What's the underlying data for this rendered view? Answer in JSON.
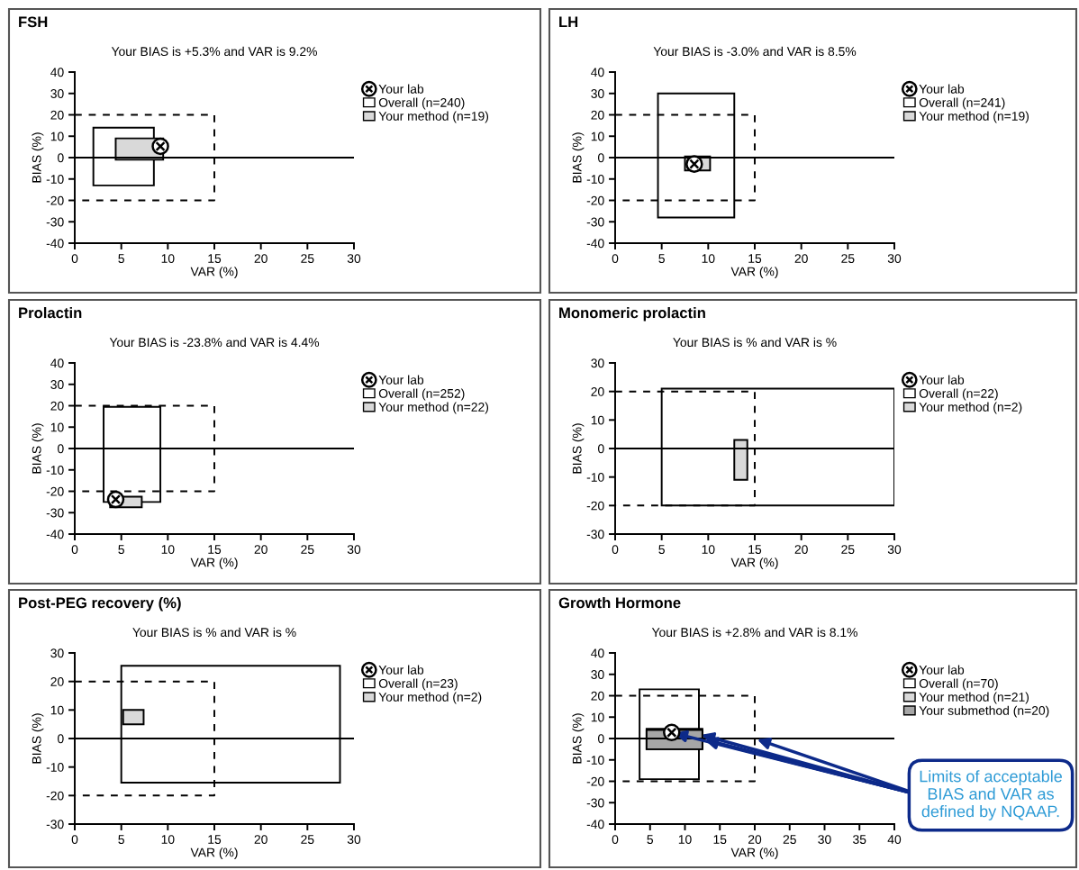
{
  "chart_data": [
    {
      "type": "scatter",
      "title": "FSH",
      "subtitle": "Your BIAS is +5.3% and VAR is 9.2%",
      "xlabel": "VAR (%)",
      "ylabel": "BIAS (%)",
      "xlim": [
        0,
        30
      ],
      "ylim": [
        -40,
        40
      ],
      "xticks": [
        0,
        5,
        10,
        15,
        20,
        25,
        30
      ],
      "yticks": [
        -40,
        -30,
        -20,
        -10,
        0,
        10,
        20,
        30,
        40
      ],
      "legend": "right",
      "ref_lines": [
        {
          "axis": "y",
          "value": 0,
          "color": "#000000"
        }
      ],
      "series": [
        {
          "type": "line",
          "line_style": "dashed",
          "color": "#000000",
          "x": [
            0,
            15,
            15,
            0
          ],
          "values": [
            20,
            20,
            -20,
            -20
          ]
        },
        {
          "name": "Overall (n=240)",
          "type": "area",
          "color": "#ffffff",
          "x": [
            2,
            8.5,
            8.5,
            2,
            2
          ],
          "values": [
            -13,
            -13,
            14,
            14,
            -13
          ]
        },
        {
          "name": "Your method (n=19)",
          "type": "area",
          "color": "#d9d9d9",
          "x": [
            4.4,
            9.5,
            9.5,
            4.4,
            4.4
          ],
          "values": [
            -1,
            -1,
            9,
            9,
            -1
          ]
        },
        {
          "name": "Your lab",
          "type": "scatter",
          "marker": "circle",
          "color": "#000000",
          "x": [
            9.2
          ],
          "values": [
            5.3
          ]
        }
      ]
    },
    {
      "type": "scatter",
      "title": "LH",
      "subtitle": "Your BIAS is -3.0% and VAR is 8.5%",
      "xlabel": "VAR (%)",
      "ylabel": "BIAS (%)",
      "xlim": [
        0,
        30
      ],
      "ylim": [
        -40,
        40
      ],
      "xticks": [
        0,
        5,
        10,
        15,
        20,
        25,
        30
      ],
      "yticks": [
        -40,
        -30,
        -20,
        -10,
        0,
        10,
        20,
        30,
        40
      ],
      "legend": "right",
      "ref_lines": [
        {
          "axis": "y",
          "value": 0,
          "color": "#000000"
        }
      ],
      "series": [
        {
          "type": "line",
          "line_style": "dashed",
          "color": "#000000",
          "x": [
            0,
            15,
            15,
            0
          ],
          "values": [
            20,
            20,
            -20,
            -20
          ]
        },
        {
          "name": "Overall (n=241)",
          "type": "area",
          "color": "#ffffff",
          "x": [
            4.6,
            12.8,
            12.8,
            4.6,
            4.6
          ],
          "values": [
            -28,
            -28,
            30,
            30,
            -28
          ]
        },
        {
          "name": "Your method (n=19)",
          "type": "area",
          "color": "#d9d9d9",
          "x": [
            7.5,
            10.2,
            10.2,
            7.5,
            7.5
          ],
          "values": [
            -6,
            -6,
            0.5,
            0.5,
            -6
          ]
        },
        {
          "name": "Your lab",
          "type": "scatter",
          "marker": "circle",
          "color": "#000000",
          "x": [
            8.5
          ],
          "values": [
            -3.0
          ]
        }
      ]
    },
    {
      "type": "scatter",
      "title": "Prolactin",
      "subtitle": "Your BIAS is -23.8% and VAR is 4.4%",
      "xlabel": "VAR (%)",
      "ylabel": "BIAS (%)",
      "xlim": [
        0,
        30
      ],
      "ylim": [
        -40,
        40
      ],
      "xticks": [
        0,
        5,
        10,
        15,
        20,
        25,
        30
      ],
      "yticks": [
        -40,
        -30,
        -20,
        -10,
        0,
        10,
        20,
        30,
        40
      ],
      "legend": "right",
      "ref_lines": [
        {
          "axis": "y",
          "value": 0,
          "color": "#000000"
        }
      ],
      "series": [
        {
          "type": "line",
          "line_style": "dashed",
          "color": "#000000",
          "x": [
            0,
            15,
            15,
            0
          ],
          "values": [
            20,
            20,
            -20,
            -20
          ]
        },
        {
          "name": "Overall (n=252)",
          "type": "area",
          "color": "#ffffff",
          "x": [
            3.1,
            9.2,
            9.2,
            3.1,
            3.1
          ],
          "values": [
            -25,
            -25,
            19.5,
            19.5,
            -25
          ]
        },
        {
          "name": "Your method (n=22)",
          "type": "area",
          "color": "#d9d9d9",
          "x": [
            3.8,
            7.2,
            7.2,
            3.8,
            3.8
          ],
          "values": [
            -27.5,
            -27.5,
            -22.5,
            -22.5,
            -27.5
          ]
        },
        {
          "name": "Your lab",
          "type": "scatter",
          "marker": "circle",
          "color": "#000000",
          "x": [
            4.4
          ],
          "values": [
            -23.8
          ]
        }
      ]
    },
    {
      "type": "scatter",
      "title": "Monomeric prolactin",
      "subtitle": "Your BIAS is % and VAR is %",
      "xlabel": "VAR (%)",
      "ylabel": "BIAS (%)",
      "xlim": [
        0,
        30
      ],
      "ylim": [
        -30,
        30
      ],
      "xticks": [
        0,
        5,
        10,
        15,
        20,
        25,
        30
      ],
      "yticks": [
        -30,
        -20,
        -10,
        0,
        10,
        20,
        30
      ],
      "legend": "right",
      "ref_lines": [
        {
          "axis": "y",
          "value": 0,
          "color": "#000000"
        }
      ],
      "series": [
        {
          "type": "line",
          "line_style": "dashed",
          "color": "#000000",
          "x": [
            0,
            15,
            15,
            0
          ],
          "values": [
            20,
            20,
            -20,
            -20
          ]
        },
        {
          "name": "Overall (n=22)",
          "type": "area",
          "color": "#ffffff",
          "x": [
            5,
            30,
            30,
            5,
            5
          ],
          "values": [
            -20,
            -20,
            21,
            21,
            -20
          ]
        },
        {
          "name": "Your method (n=2)",
          "type": "area",
          "color": "#d9d9d9",
          "x": [
            12.8,
            14.2,
            14.2,
            12.8,
            12.8
          ],
          "values": [
            -11,
            -11,
            3,
            3,
            -11
          ]
        },
        {
          "name": "Your lab",
          "type": "scatter",
          "marker": "circle",
          "color": "#000000"
        }
      ]
    },
    {
      "type": "scatter",
      "title": "Post-PEG recovery (%)",
      "subtitle": "Your BIAS is % and VAR is %",
      "xlabel": "VAR (%)",
      "ylabel": "BIAS (%)",
      "xlim": [
        0,
        30
      ],
      "ylim": [
        -30,
        30
      ],
      "xticks": [
        0,
        5,
        10,
        15,
        20,
        25,
        30
      ],
      "yticks": [
        -30,
        -20,
        -10,
        0,
        10,
        20,
        30
      ],
      "legend": "right",
      "ref_lines": [
        {
          "axis": "y",
          "value": 0,
          "color": "#000000"
        }
      ],
      "series": [
        {
          "type": "line",
          "line_style": "dashed",
          "color": "#000000",
          "x": [
            0,
            15,
            15,
            0
          ],
          "values": [
            20,
            20,
            -20,
            -20
          ]
        },
        {
          "name": "Overall (n=23)",
          "type": "area",
          "color": "#ffffff",
          "x": [
            5,
            28.5,
            28.5,
            5,
            5
          ],
          "values": [
            -15.5,
            -15.5,
            25.5,
            25.5,
            -15.5
          ]
        },
        {
          "name": "Your method (n=2)",
          "type": "area",
          "color": "#d9d9d9",
          "x": [
            5.2,
            7.4,
            7.4,
            5.2,
            5.2
          ],
          "values": [
            5,
            5,
            10,
            10,
            5
          ]
        },
        {
          "name": "Your lab",
          "type": "scatter",
          "marker": "circle",
          "color": "#000000"
        }
      ]
    },
    {
      "type": "scatter",
      "title": "Growth Hormone",
      "subtitle": "Your BIAS is +2.8% and VAR is 8.1%",
      "xlabel": "VAR (%)",
      "ylabel": "BIAS (%)",
      "xlim": [
        0,
        40
      ],
      "ylim": [
        -40,
        40
      ],
      "xticks": [
        0,
        5,
        10,
        15,
        20,
        25,
        30,
        35,
        40
      ],
      "yticks": [
        -40,
        -30,
        -20,
        -10,
        0,
        10,
        20,
        30,
        40
      ],
      "legend": "right",
      "ref_lines": [
        {
          "axis": "y",
          "value": 0,
          "color": "#000000"
        }
      ],
      "annotations": [
        "Limits of acceptable BIAS and VAR as defined by NQAAP."
      ],
      "series": [
        {
          "type": "line",
          "line_style": "dashed",
          "color": "#000000",
          "x": [
            0,
            20,
            20,
            0
          ],
          "values": [
            20,
            20,
            -20,
            -20
          ]
        },
        {
          "name": "Overall (n=70)",
          "type": "area",
          "color": "#ffffff",
          "x": [
            3.5,
            12,
            12,
            3.5,
            3.5
          ],
          "values": [
            -19,
            -19,
            23,
            23,
            -19
          ]
        },
        {
          "name": "Your method (n=21)",
          "type": "area",
          "color": "#d9d9d9",
          "x": [
            4.5,
            12.5,
            12.5,
            4.5,
            4.5
          ],
          "values": [
            -5,
            -5,
            4.5,
            4.5,
            -5
          ]
        },
        {
          "name": "Your submethod (n=20)",
          "type": "area",
          "color": "#a6a6a6",
          "x": [
            4.5,
            12.5,
            12.5,
            4.5,
            4.5
          ],
          "values": [
            -5,
            -5,
            4,
            4,
            -5
          ]
        },
        {
          "name": "Your lab",
          "type": "scatter",
          "marker": "circle",
          "color": "#000000",
          "x": [
            8.1
          ],
          "values": [
            2.8
          ]
        }
      ]
    }
  ]
}
